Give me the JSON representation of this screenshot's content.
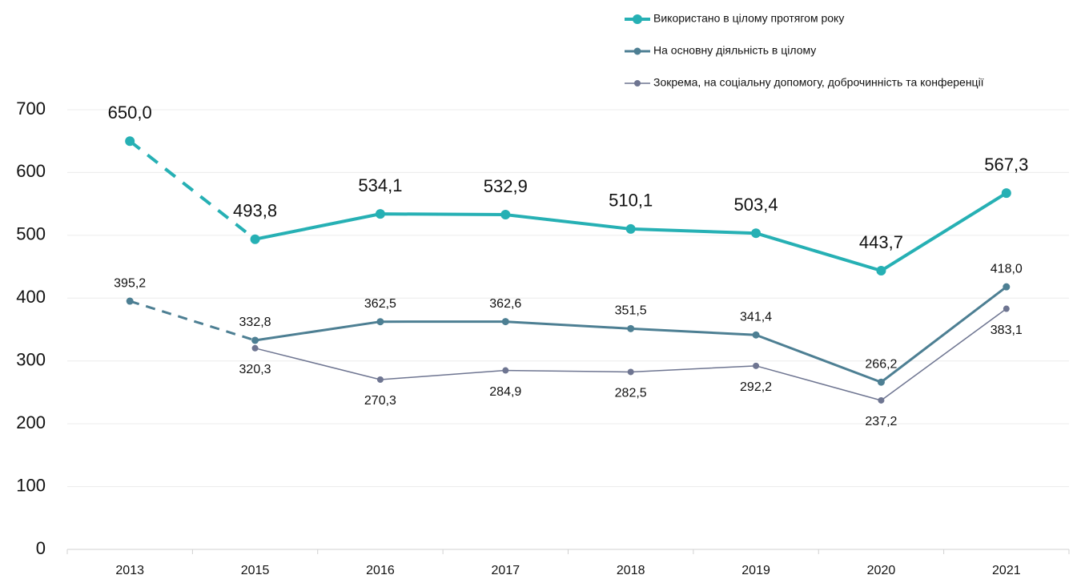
{
  "chart_data": {
    "type": "line",
    "categories": [
      "2013",
      "2015",
      "2016",
      "2017",
      "2018",
      "2019",
      "2020",
      "2021"
    ],
    "series": [
      {
        "name": "Використано в цілому протягом року",
        "color": "#26b0b4",
        "values": [
          650.0,
          493.8,
          534.1,
          532.9,
          510.1,
          503.4,
          443.7,
          567.3
        ],
        "value_labels": [
          "650,0",
          "493,8",
          "534,1",
          "532,9",
          "510,1",
          "503,4",
          "443,7",
          "567,3"
        ]
      },
      {
        "name": "На основну діяльність в цілому",
        "color": "#4d7f93",
        "values": [
          395.2,
          332.8,
          362.5,
          362.6,
          351.5,
          341.4,
          266.2,
          418.0
        ],
        "value_labels": [
          "395,2",
          "332,8",
          "362,5",
          "362,6",
          "351,5",
          "341,4",
          "266,2",
          "418,0"
        ]
      },
      {
        "name": "Зокрема, на соціальну допомогу, доброчинність та конференції",
        "color": "#6e7591",
        "values": [
          null,
          320.3,
          270.3,
          284.9,
          282.5,
          292.2,
          237.2,
          383.1
        ],
        "value_labels": [
          null,
          "320,3",
          "270,3",
          "284,9",
          "282,5",
          "292,2",
          "237,2",
          "383,1"
        ]
      }
    ],
    "ylim": [
      0,
      700
    ],
    "yticks": [
      0,
      100,
      200,
      300,
      400,
      500,
      600,
      700
    ],
    "grid": true
  }
}
